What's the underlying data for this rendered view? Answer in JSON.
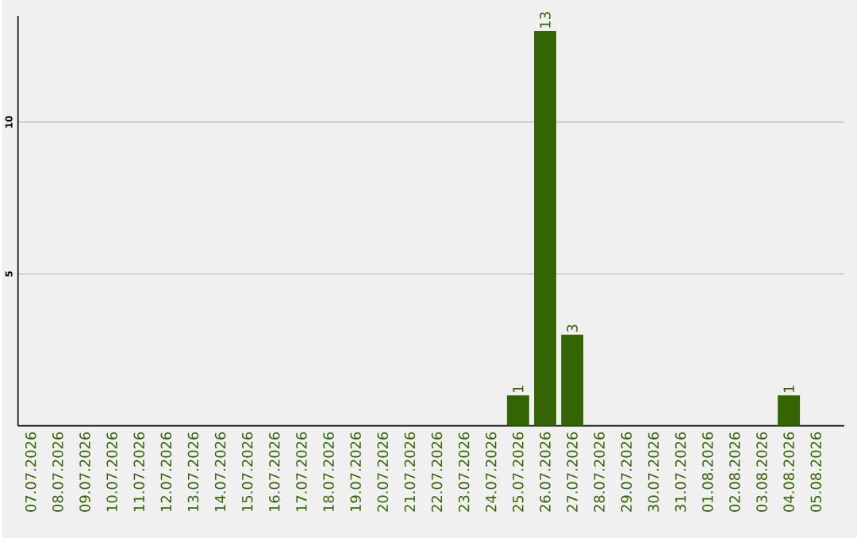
{
  "chart_data": {
    "type": "bar",
    "categories": [
      "07.07.2026",
      "08.07.2026",
      "09.07.2026",
      "10.07.2026",
      "11.07.2026",
      "12.07.2026",
      "13.07.2026",
      "14.07.2026",
      "15.07.2026",
      "16.07.2026",
      "17.07.2026",
      "18.07.2026",
      "19.07.2026",
      "20.07.2026",
      "21.07.2026",
      "22.07.2026",
      "23.07.2026",
      "24.07.2026",
      "25.07.2026",
      "26.07.2026",
      "27.07.2026",
      "28.07.2026",
      "29.07.2026",
      "30.07.2026",
      "31.07.2026",
      "01.08.2026",
      "02.08.2026",
      "03.08.2026",
      "04.08.2026",
      "05.08.2026"
    ],
    "values": [
      0,
      0,
      0,
      0,
      0,
      0,
      0,
      0,
      0,
      0,
      0,
      0,
      0,
      0,
      0,
      0,
      0,
      0,
      1,
      13,
      3,
      0,
      0,
      0,
      0,
      0,
      0,
      0,
      1,
      0
    ],
    "value_labels": [
      null,
      null,
      null,
      null,
      null,
      null,
      null,
      null,
      null,
      null,
      null,
      null,
      null,
      null,
      null,
      null,
      null,
      null,
      "1",
      "13",
      "3",
      null,
      null,
      null,
      null,
      null,
      null,
      null,
      "1",
      null
    ],
    "color": "#336600",
    "ylim": [
      0,
      13.5
    ],
    "yticks": [
      5,
      10
    ],
    "grid": "y"
  }
}
